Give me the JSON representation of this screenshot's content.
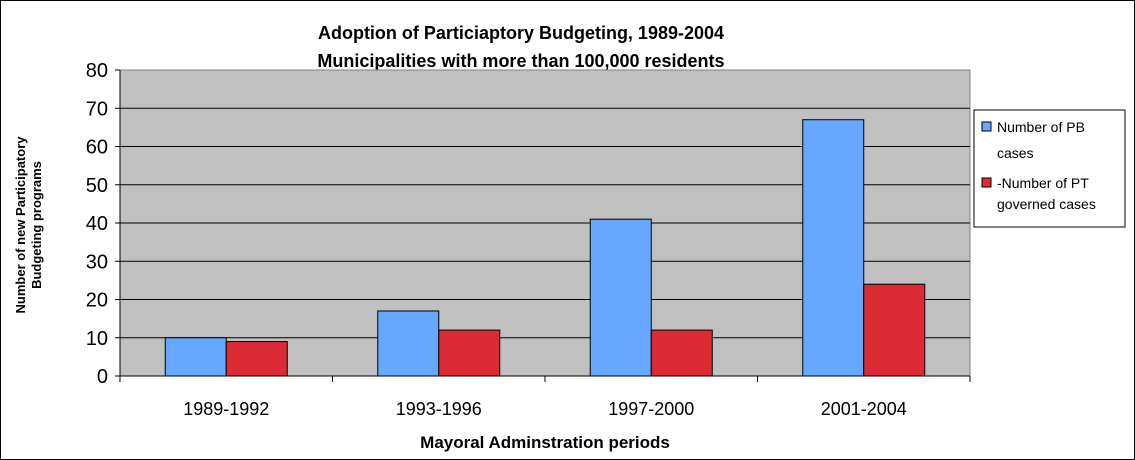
{
  "chart_data": {
    "type": "bar",
    "title": "Adoption of Particiaptory Budgeting, 1989-2004",
    "subtitle": "Municipalities with more than 100,000 residents",
    "xlabel": "Mayoral Adminstration periods",
    "ylabel_lines": [
      "Number of new Participatory",
      "Budgeting programs"
    ],
    "categories": [
      "1989-1992",
      "1993-1996",
      "1997-2000",
      "2001-2004"
    ],
    "ylim": [
      0,
      80
    ],
    "yticks": [
      0,
      10,
      20,
      30,
      40,
      50,
      60,
      70,
      80
    ],
    "grid": true,
    "legend_position": "right",
    "plot_background": "#c0c0c0",
    "series": [
      {
        "name_lines": [
          "Number of PB",
          "cases"
        ],
        "color": "#66a8ff",
        "values": [
          10,
          17,
          41,
          67
        ]
      },
      {
        "name_lines": [
          "-Number of PT",
          "governed cases"
        ],
        "color": "#dd2b36",
        "values": [
          9,
          12,
          12,
          24
        ]
      }
    ]
  }
}
